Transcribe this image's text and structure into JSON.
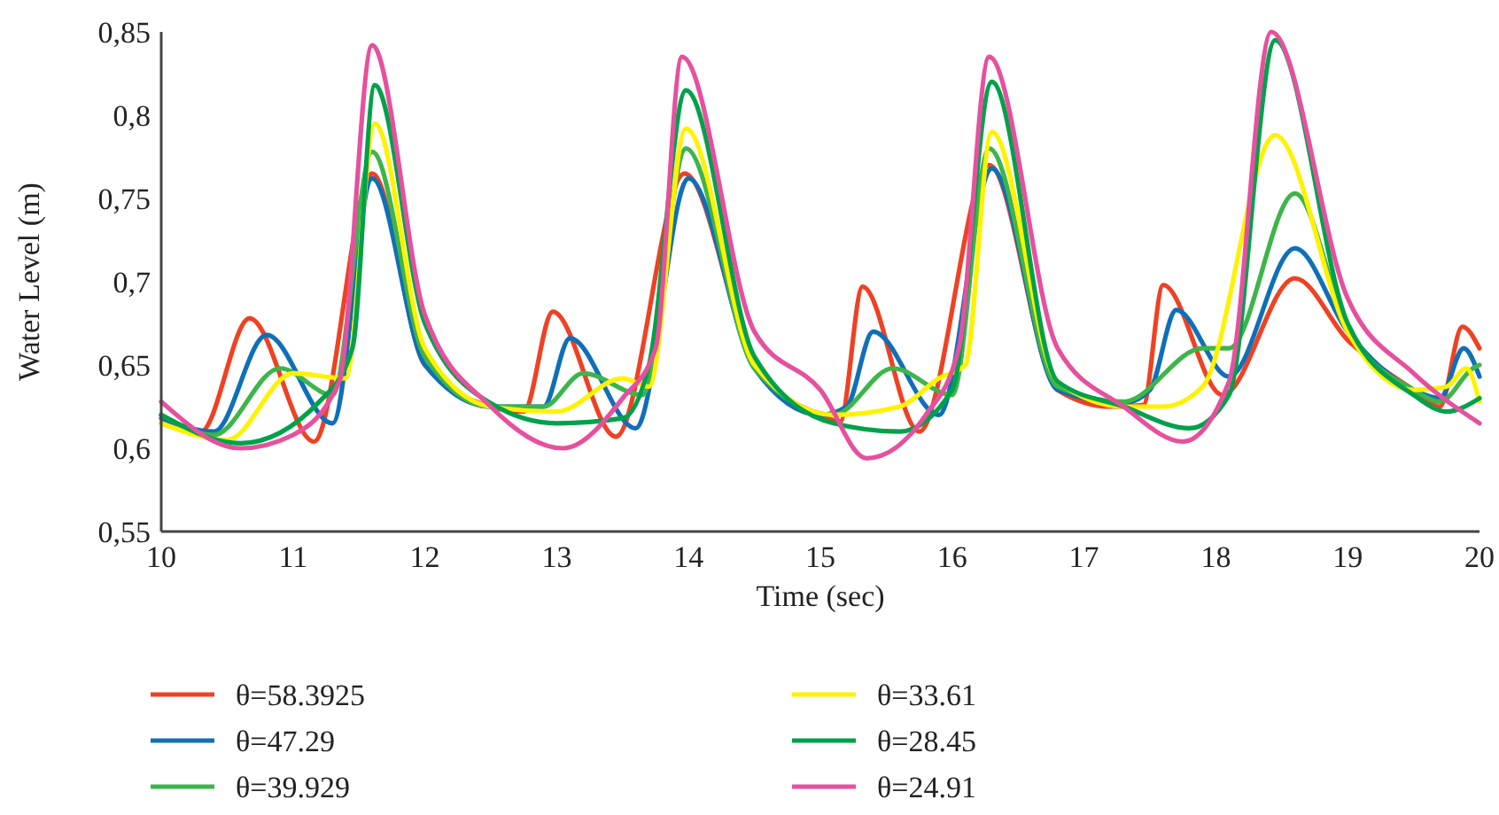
{
  "chart_data": {
    "type": "line",
    "xlabel": "Time (sec)",
    "ylabel": "Water Level (m)",
    "xlim": [
      10,
      20
    ],
    "xticks": [
      10,
      11,
      12,
      13,
      14,
      15,
      16,
      17,
      18,
      19,
      20
    ],
    "ylim": [
      0.55,
      0.85
    ],
    "yticks": [
      {
        "value": 0.55,
        "label": "0,55"
      },
      {
        "value": 0.6,
        "label": "0,6"
      },
      {
        "value": 0.65,
        "label": "0,65"
      },
      {
        "value": 0.7,
        "label": "0,7"
      },
      {
        "value": 0.75,
        "label": "0,75"
      },
      {
        "value": 0.8,
        "label": "0,8"
      },
      {
        "value": 0.85,
        "label": "0,85"
      }
    ],
    "grid": false,
    "legend": "bottom",
    "marker": "none",
    "line_style": "solid",
    "series": [
      {
        "name": "θ=58.3925",
        "color": "#ef4123",
        "x": [
          10,
          10.3,
          10.67,
          11.16,
          11.6,
          12,
          12.5,
          12.75,
          12.97,
          13.45,
          13.97,
          14.5,
          15,
          15.15,
          15.32,
          15.75,
          16.28,
          16.8,
          17.2,
          17.45,
          17.6,
          18.05,
          18.6,
          19,
          19.5,
          19.7,
          19.87,
          20
        ],
        "values": [
          0.615,
          0.61,
          0.678,
          0.604,
          0.765,
          0.65,
          0.625,
          0.622,
          0.682,
          0.607,
          0.765,
          0.65,
          0.62,
          0.616,
          0.697,
          0.61,
          0.77,
          0.635,
          0.625,
          0.626,
          0.698,
          0.632,
          0.702,
          0.665,
          0.635,
          0.625,
          0.673,
          0.66
        ]
      },
      {
        "name": "θ=47.29",
        "color": "#0f6fb8",
        "x": [
          10,
          10.4,
          10.8,
          11.3,
          11.6,
          12,
          12.5,
          12.9,
          13.1,
          13.6,
          14,
          14.5,
          15,
          15.2,
          15.4,
          15.9,
          16.3,
          16.8,
          17.3,
          17.5,
          17.7,
          18.1,
          18.6,
          19,
          19.5,
          19.7,
          19.88,
          20
        ],
        "values": [
          0.618,
          0.61,
          0.668,
          0.615,
          0.762,
          0.65,
          0.625,
          0.625,
          0.666,
          0.612,
          0.762,
          0.648,
          0.62,
          0.625,
          0.67,
          0.62,
          0.768,
          0.635,
          0.627,
          0.635,
          0.683,
          0.643,
          0.72,
          0.67,
          0.635,
          0.63,
          0.66,
          0.643
        ]
      },
      {
        "name": "θ=39.929",
        "color": "#3db54a",
        "x": [
          10,
          10.4,
          10.9,
          11.3,
          11.6,
          12,
          12.5,
          12.9,
          13.2,
          13.65,
          13.98,
          14.5,
          15.1,
          15.55,
          16,
          16.28,
          16.8,
          17.3,
          17.9,
          18.1,
          18.6,
          19,
          19.5,
          19.7,
          19.95,
          20
        ],
        "values": [
          0.62,
          0.608,
          0.648,
          0.632,
          0.778,
          0.655,
          0.625,
          0.625,
          0.645,
          0.632,
          0.78,
          0.648,
          0.62,
          0.648,
          0.632,
          0.78,
          0.637,
          0.628,
          0.66,
          0.66,
          0.753,
          0.672,
          0.635,
          0.628,
          0.648,
          0.65
        ]
      },
      {
        "name": "θ=33.61",
        "color": "#fff200",
        "x": [
          10,
          10.5,
          11,
          11.4,
          11.62,
          12,
          12.5,
          13,
          13.5,
          13.7,
          13.98,
          14.5,
          15.1,
          15.6,
          15.9,
          16.1,
          16.3,
          16.8,
          17.3,
          17.6,
          17.9,
          18.45,
          19,
          19.5,
          19.75,
          19.9,
          20
        ],
        "values": [
          0.615,
          0.605,
          0.645,
          0.642,
          0.795,
          0.66,
          0.625,
          0.622,
          0.642,
          0.637,
          0.792,
          0.65,
          0.62,
          0.625,
          0.642,
          0.65,
          0.79,
          0.64,
          0.625,
          0.625,
          0.637,
          0.788,
          0.67,
          0.635,
          0.637,
          0.648,
          0.628
        ]
      },
      {
        "name": "θ=28.45",
        "color": "#00a14b",
        "x": [
          10,
          10.6,
          11.2,
          11.45,
          11.62,
          12,
          12.5,
          13,
          13.5,
          13.7,
          13.98,
          14.5,
          15.1,
          15.6,
          16,
          16.3,
          16.8,
          17.3,
          17.8,
          18.1,
          18.45,
          19,
          19.5,
          19.75,
          20
        ],
        "values": [
          0.62,
          0.603,
          0.628,
          0.66,
          0.818,
          0.675,
          0.627,
          0.615,
          0.618,
          0.65,
          0.815,
          0.655,
          0.615,
          0.61,
          0.635,
          0.82,
          0.64,
          0.625,
          0.612,
          0.632,
          0.845,
          0.675,
          0.632,
          0.622,
          0.63
        ]
      },
      {
        "name": "θ=24.91",
        "color": "#e6509e",
        "x": [
          10,
          10.6,
          11,
          11.35,
          11.6,
          12,
          12.5,
          13.05,
          13.5,
          13.75,
          13.95,
          14.5,
          15,
          15.35,
          15.8,
          16.05,
          16.28,
          16.8,
          17.3,
          17.75,
          18.1,
          18.42,
          19,
          19.5,
          20
        ],
        "values": [
          0.628,
          0.6,
          0.608,
          0.64,
          0.842,
          0.68,
          0.625,
          0.6,
          0.63,
          0.66,
          0.835,
          0.67,
          0.635,
          0.594,
          0.62,
          0.66,
          0.835,
          0.66,
          0.625,
          0.604,
          0.64,
          0.85,
          0.69,
          0.645,
          0.615
        ]
      }
    ]
  }
}
